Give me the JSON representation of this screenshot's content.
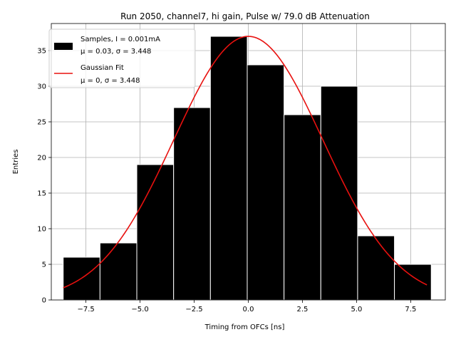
{
  "chart_data": {
    "type": "bar",
    "title": "Run 2050, channel7, hi gain, Pulse w/ 79.0 dB Attenuation",
    "xlabel": "Timing from OFCs [ns]",
    "ylabel": "Entries",
    "xlim": [
      -9.1,
      9.1
    ],
    "ylim": [
      0,
      38.8
    ],
    "xticks": [
      -7.5,
      -5.0,
      -2.5,
      0.0,
      2.5,
      5.0,
      7.5
    ],
    "xtick_labels": [
      "−7.5",
      "−5.0",
      "−2.5",
      "0.0",
      "2.5",
      "5.0",
      "7.5"
    ],
    "yticks": [
      0,
      5,
      10,
      15,
      20,
      25,
      30,
      35
    ],
    "ytick_labels": [
      "0",
      "5",
      "10",
      "15",
      "20",
      "25",
      "30",
      "35"
    ],
    "grid": true,
    "legend_position": "top-left",
    "bins": [
      {
        "left": -8.55,
        "right": -6.85,
        "value": 6
      },
      {
        "left": -6.85,
        "right": -5.15,
        "value": 8
      },
      {
        "left": -5.15,
        "right": -3.45,
        "value": 19
      },
      {
        "left": -3.45,
        "right": -1.75,
        "value": 27
      },
      {
        "left": -1.75,
        "right": -0.05,
        "value": 37
      },
      {
        "left": -0.05,
        "right": 1.65,
        "value": 33
      },
      {
        "left": 1.65,
        "right": 3.35,
        "value": 26
      },
      {
        "left": 3.35,
        "right": 5.05,
        "value": 30
      },
      {
        "left": 5.05,
        "right": 6.75,
        "value": 9
      },
      {
        "left": 6.75,
        "right": 8.45,
        "value": 5
      }
    ],
    "fit": {
      "mu": 0,
      "sigma": 3.448,
      "amplitude": 37,
      "x_range": [
        -8.55,
        8.25
      ]
    },
    "series": [
      {
        "name": "Samples, I = 0.001mA",
        "detail": "μ = 0.03, σ = 3.448",
        "color": "#000000"
      },
      {
        "name": "Gaussian Fit",
        "detail": "μ = 0, σ = 3.448",
        "color": "#e8110f"
      }
    ],
    "colors": {
      "bars": "#000000",
      "bar_edge": "#ffffff",
      "fit_line": "#e8110f",
      "grid": "#b0b0b0"
    }
  }
}
